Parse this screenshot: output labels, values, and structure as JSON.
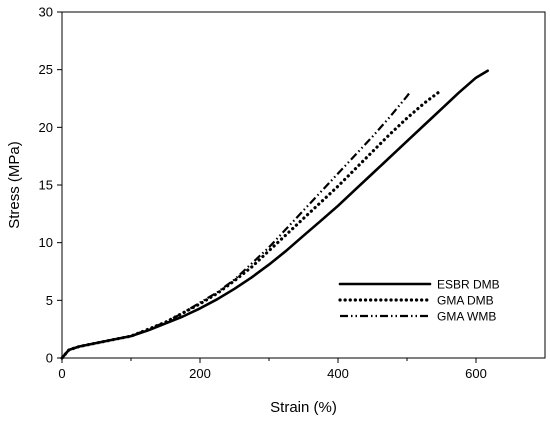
{
  "chart_data": {
    "type": "line",
    "xlabel": "Strain (%)",
    "ylabel": "Stress (MPa)",
    "xlim": [
      0,
      700
    ],
    "ylim": [
      0,
      30
    ],
    "x_ticks": [
      0,
      200,
      400,
      600
    ],
    "y_ticks": [
      0,
      5,
      10,
      15,
      20,
      25,
      30
    ],
    "x_tick_labels": [
      "0",
      "200",
      "400",
      "600"
    ],
    "y_tick_labels": [
      "0",
      "5",
      "10",
      "15",
      "20",
      "25",
      "30"
    ],
    "grid": false,
    "legend_position": "lower-right",
    "series": [
      {
        "name": "ESBR DMB",
        "style": "solid",
        "color": "#000000",
        "x": [
          0,
          10,
          25,
          50,
          75,
          100,
          125,
          150,
          175,
          200,
          225,
          250,
          275,
          300,
          325,
          350,
          375,
          400,
          425,
          450,
          475,
          500,
          525,
          550,
          575,
          600,
          617
        ],
        "y": [
          0,
          0.7,
          1.0,
          1.3,
          1.6,
          1.9,
          2.4,
          3.0,
          3.6,
          4.3,
          5.1,
          6.0,
          7.0,
          8.1,
          9.3,
          10.6,
          11.9,
          13.2,
          14.6,
          16.0,
          17.4,
          18.8,
          20.2,
          21.6,
          23.0,
          24.3,
          24.9
        ]
      },
      {
        "name": "GMA DMB",
        "style": "dotted",
        "color": "#000000",
        "x": [
          0,
          10,
          25,
          50,
          75,
          100,
          125,
          150,
          175,
          200,
          225,
          250,
          275,
          300,
          325,
          350,
          375,
          400,
          425,
          450,
          475,
          500,
          525,
          545
        ],
        "y": [
          0,
          0.7,
          1.0,
          1.3,
          1.6,
          1.9,
          2.5,
          3.1,
          3.9,
          4.7,
          5.6,
          6.7,
          7.9,
          9.3,
          10.7,
          12.1,
          13.5,
          14.9,
          16.4,
          17.9,
          19.4,
          20.8,
          22.1,
          23.0
        ]
      },
      {
        "name": "GMA WMB",
        "style": "dash-dot-dot",
        "color": "#000000",
        "x": [
          0,
          10,
          25,
          50,
          75,
          100,
          125,
          150,
          175,
          200,
          225,
          250,
          275,
          300,
          325,
          350,
          375,
          400,
          425,
          450,
          475,
          500,
          505
        ],
        "y": [
          0,
          0.7,
          1.0,
          1.3,
          1.6,
          1.9,
          2.5,
          3.1,
          3.9,
          4.8,
          5.7,
          6.8,
          8.2,
          9.6,
          11.2,
          12.8,
          14.4,
          16.0,
          17.6,
          19.2,
          20.9,
          22.7,
          23.1
        ]
      }
    ]
  }
}
